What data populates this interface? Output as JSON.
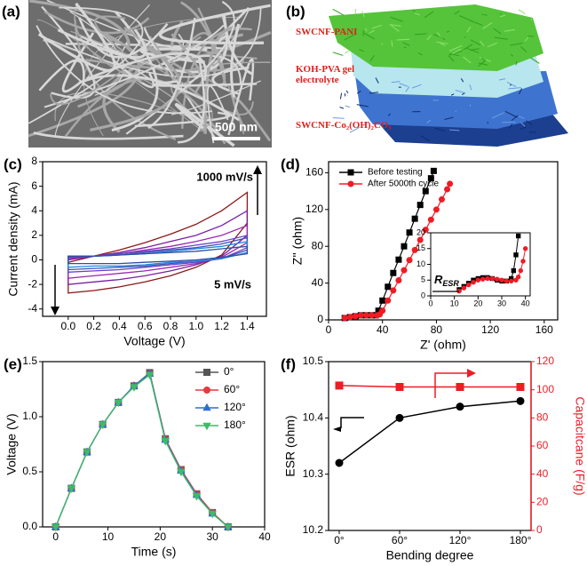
{
  "panel_a": {
    "label": "(a)",
    "scale_bar": "500 nm"
  },
  "panel_b": {
    "label": "(b)",
    "layers": [
      "SWCNF-PANI",
      "KOH-PVA gel electrolyte",
      "SWCNF-Co₂(OH)₂CO₃"
    ]
  },
  "chart_data": [
    {
      "type": "line",
      "panel_label": "(c)",
      "xlabel": "Voltage (V)",
      "ylabel": "Current density (mA)",
      "x": [
        0,
        0.2,
        0.4,
        0.6,
        0.8,
        1.0,
        1.2,
        1.4,
        1.4,
        1.2,
        1.0,
        0.8,
        0.6,
        0.4,
        0.2,
        0
      ],
      "series": [
        {
          "color": "#8b1a1a",
          "values": [
            -0.2,
            0.3,
            0.8,
            1.4,
            2.1,
            2.9,
            4.0,
            5.5,
            3.0,
            0.4,
            -0.6,
            -1.3,
            -1.8,
            -2.2,
            -2.5,
            -2.7
          ]
        },
        {
          "color": "#7a1fa2",
          "values": [
            0,
            0.3,
            0.6,
            1.0,
            1.5,
            2.0,
            2.8,
            4.0,
            2.0,
            0.3,
            -0.4,
            -0.9,
            -1.3,
            -1.6,
            -1.8,
            -2.0
          ]
        },
        {
          "color": "#9c27b0",
          "values": [
            0.1,
            0.3,
            0.5,
            0.8,
            1.1,
            1.5,
            2.0,
            2.8,
            1.4,
            0.2,
            -0.3,
            -0.6,
            -0.9,
            -1.1,
            -1.3,
            -1.5
          ]
        },
        {
          "color": "#6a3fc8",
          "values": [
            0.2,
            0.3,
            0.5,
            0.7,
            0.9,
            1.2,
            1.5,
            2.0,
            1.0,
            0.1,
            -0.2,
            -0.4,
            -0.6,
            -0.8,
            -0.9,
            -1.0
          ]
        },
        {
          "color": "#3f51b5",
          "values": [
            0.3,
            0.3,
            0.4,
            0.6,
            0.8,
            1.0,
            1.3,
            1.8,
            0.8,
            0.1,
            -0.1,
            -0.3,
            -0.5,
            -0.6,
            -0.7,
            -0.8
          ]
        },
        {
          "color": "#1e88e5",
          "values": [
            0.3,
            0.3,
            0.4,
            0.5,
            0.7,
            0.9,
            1.1,
            1.5,
            0.6,
            0.1,
            -0.1,
            -0.2,
            -0.4,
            -0.5,
            -0.5,
            -0.6
          ]
        },
        {
          "color": "#2e4fa0",
          "values": [
            0.3,
            0.3,
            0.4,
            0.5,
            0.6,
            0.7,
            0.9,
            1.1,
            0.5,
            0.2,
            0,
            -0.1,
            -0.2,
            -0.3,
            -0.3,
            -0.3
          ]
        }
      ],
      "xlim": [
        -0.2,
        1.55
      ],
      "ylim": [
        -4.6,
        8
      ],
      "xticks": [
        {
          "value": 0,
          "label": "0.0"
        },
        0.2,
        0.4,
        0.6,
        0.8,
        {
          "value": 1,
          "label": "1.0"
        },
        1.2,
        1.4
      ],
      "yticks": [
        -4,
        -2,
        0,
        2,
        4,
        6,
        8
      ],
      "annotations": [
        "1000 mV/s",
        "5 mV/s"
      ]
    },
    {
      "type": "line",
      "panel_label": "(d)",
      "xlabel": "Z' (ohm)",
      "ylabel": "Z'' (ohm)",
      "legend": "upper left",
      "series": [
        {
          "name": "Before testing",
          "color": "#000000",
          "marker": "square",
          "x": [
            12,
            16,
            20,
            24,
            28,
            32,
            35,
            37,
            40,
            44,
            48,
            52,
            56,
            60,
            64,
            68,
            72,
            76,
            78
          ],
          "values": [
            2,
            3,
            4,
            5,
            5,
            5,
            5,
            10,
            21,
            36,
            51,
            65.5,
            80,
            95,
            110,
            125,
            140,
            154,
            162
          ]
        },
        {
          "name": "After 5000th cycle",
          "color": "#ee1c24",
          "marker": "circle",
          "x": [
            12,
            16,
            20,
            24,
            28,
            32,
            36,
            38,
            40,
            44,
            48,
            52,
            56,
            60,
            64,
            68,
            72,
            76,
            80,
            84,
            88,
            90
          ],
          "values": [
            2,
            3,
            4,
            5,
            5,
            5,
            5,
            6,
            10,
            21,
            32,
            43,
            54,
            65,
            76,
            87,
            98,
            109,
            120,
            131,
            142,
            148
          ]
        }
      ],
      "xlim": [
        0,
        170
      ],
      "ylim": [
        0,
        172
      ],
      "xticks": [
        0,
        40,
        80,
        120,
        160
      ],
      "yticks": [
        0,
        40,
        80,
        120,
        160
      ],
      "inset": {
        "type": "line",
        "annotation": {
          "main": "R",
          "sub": "ESR"
        },
        "series": [
          {
            "color": "#000000",
            "marker": "square",
            "x": [
              12,
              14,
              16,
              18,
              20,
              22,
              24,
              26,
              28,
              30,
              32,
              34,
              35,
              36,
              37
            ],
            "values": [
              2,
              3,
              4,
              5,
              5.5,
              5.8,
              5.8,
              5.5,
              5,
              4.7,
              4.7,
              5.5,
              8,
              13,
              19
            ]
          },
          {
            "color": "#ee1c24",
            "marker": "circle",
            "x": [
              12,
              14,
              16,
              18,
              20,
              22,
              24,
              26,
              28,
              30,
              32,
              34,
              36,
              37,
              38,
              39,
              40
            ],
            "values": [
              1.5,
              2.5,
              3.5,
              4.3,
              5,
              5.3,
              5.5,
              5.5,
              5.3,
              5,
              4.7,
              4.7,
              5,
              6,
              8,
              11,
              15
            ]
          }
        ],
        "xlim": [
          0,
          42
        ],
        "ylim": [
          0,
          20
        ],
        "xticks": [
          0,
          10,
          20,
          30,
          40
        ],
        "yticks": [
          0,
          5,
          10,
          15,
          20
        ]
      }
    },
    {
      "type": "line",
      "panel_label": "(e)",
      "xlabel": "Time (s)",
      "ylabel": "Voltage (V)",
      "legend": "upper right",
      "x": [
        0,
        3,
        6,
        9,
        12,
        15,
        18,
        21,
        24,
        27,
        30,
        33
      ],
      "series": [
        {
          "name": "0°",
          "color": "#555555",
          "marker": "square",
          "values": [
            0,
            0.35,
            0.68,
            0.93,
            1.13,
            1.28,
            1.4,
            0.8,
            0.52,
            0.3,
            0.13,
            0
          ]
        },
        {
          "name": "60°",
          "color": "#e8393c",
          "marker": "circle",
          "values": [
            0,
            0.35,
            0.68,
            0.93,
            1.13,
            1.28,
            1.39,
            0.8,
            0.52,
            0.3,
            0.13,
            0
          ]
        },
        {
          "name": "120°",
          "color": "#2f6fd0",
          "marker": "triangle-up",
          "values": [
            0,
            0.35,
            0.68,
            0.93,
            1.13,
            1.28,
            1.39,
            0.79,
            0.51,
            0.29,
            0.12,
            0
          ]
        },
        {
          "name": "180°",
          "color": "#3dbb6a",
          "marker": "triangle-down",
          "values": [
            0,
            0.35,
            0.68,
            0.93,
            1.13,
            1.27,
            1.38,
            0.78,
            0.5,
            0.28,
            0.12,
            0
          ]
        }
      ],
      "xlim": [
        -2.5,
        40
      ],
      "ylim": [
        0,
        1.5
      ],
      "xticks": [
        0,
        10,
        20,
        30,
        40
      ],
      "yticks": [
        {
          "value": 0,
          "label": "0.0"
        },
        0.5,
        {
          "value": 1,
          "label": "1.0"
        },
        1.5
      ]
    },
    {
      "type": "line",
      "panel_label": "(f)",
      "xlabel": "Bending degree",
      "ylabel": "ESR (ohm)",
      "y2label": "Capacitcane (F/g)",
      "categories": [
        "0°",
        "60°",
        "120°",
        "180°"
      ],
      "series": [
        {
          "color": "#000000",
          "marker": "circle",
          "values": [
            10.32,
            10.4,
            10.42,
            10.43
          ]
        },
        {
          "color": "#ee1c24",
          "marker": "square",
          "axis": "y2",
          "values": [
            103,
            102,
            102,
            102
          ]
        }
      ],
      "ylim": [
        10.2,
        10.5
      ],
      "yticks": [
        10.2,
        10.3,
        10.4,
        10.5
      ],
      "y2lim": [
        0,
        120
      ],
      "y2ticks": [
        0,
        20,
        40,
        60,
        80,
        100,
        120
      ]
    }
  ]
}
